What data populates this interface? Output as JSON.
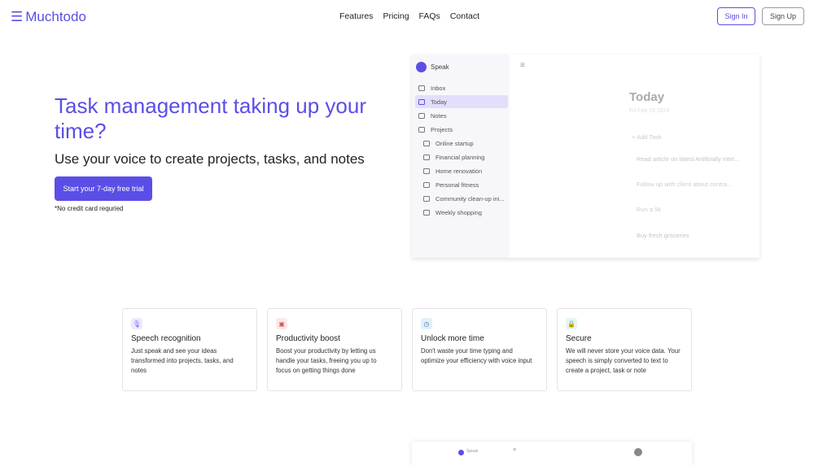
{
  "header": {
    "logo": "Muchtodo",
    "nav": [
      "Features",
      "Pricing",
      "FAQs",
      "Contact"
    ],
    "sign_in": "Sign In",
    "sign_up": "Sign Up"
  },
  "hero": {
    "title": "Task management taking up your time?",
    "subtitle": "Use your voice to create projects, tasks, and notes",
    "cta": "Start your 7-day free trial",
    "note": "*No credit card requried"
  },
  "app_preview": {
    "brand": "Speak",
    "nav": [
      {
        "label": "Inbox",
        "icon": "inbox-icon"
      },
      {
        "label": "Today",
        "icon": "calendar-icon",
        "selected": true
      },
      {
        "label": "Notes",
        "icon": "notebook-icon"
      },
      {
        "label": "Projects",
        "icon": "folder-icon"
      }
    ],
    "projects": [
      "Online startup",
      "Financial planning",
      "Home renovation",
      "Personal fitness",
      "Community clean-up ini...",
      "Weekly shopping"
    ],
    "title": "Today",
    "date": "Fri Feb 16 2024",
    "add_task": "Add Task",
    "tasks": [
      "Read article on latest Artificially Intel...",
      "Follow up with client about contra...",
      "Run a 5k",
      "Buy fresh groceries"
    ]
  },
  "features": [
    {
      "title": "Speech recognition",
      "text": "Just speak and see your ideas transformed into projects, tasks, and notes",
      "icon": "microphone-icon",
      "color": "#7b61ff",
      "bg": "#ece8ff"
    },
    {
      "title": "Productivity boost",
      "text": "Boost your productivity by letting us handle your tasks, freeing you up to focus on getting things done",
      "icon": "briefcase-icon",
      "color": "#e05555",
      "bg": "#fde9e9"
    },
    {
      "title": "Unlock more time",
      "text": "Don't waste your time typing and optimize your efficiency with voice input",
      "icon": "clock-icon",
      "color": "#3b82c4",
      "bg": "#e3f0fb"
    },
    {
      "title": "Secure",
      "text": "We will never store your voice data. Your speech is simply converted to text to create a project, task or note",
      "icon": "lock-icon",
      "color": "#2fa860",
      "bg": "#e3f7ea"
    }
  ],
  "app_preview_2": {
    "brand": "Speak"
  }
}
